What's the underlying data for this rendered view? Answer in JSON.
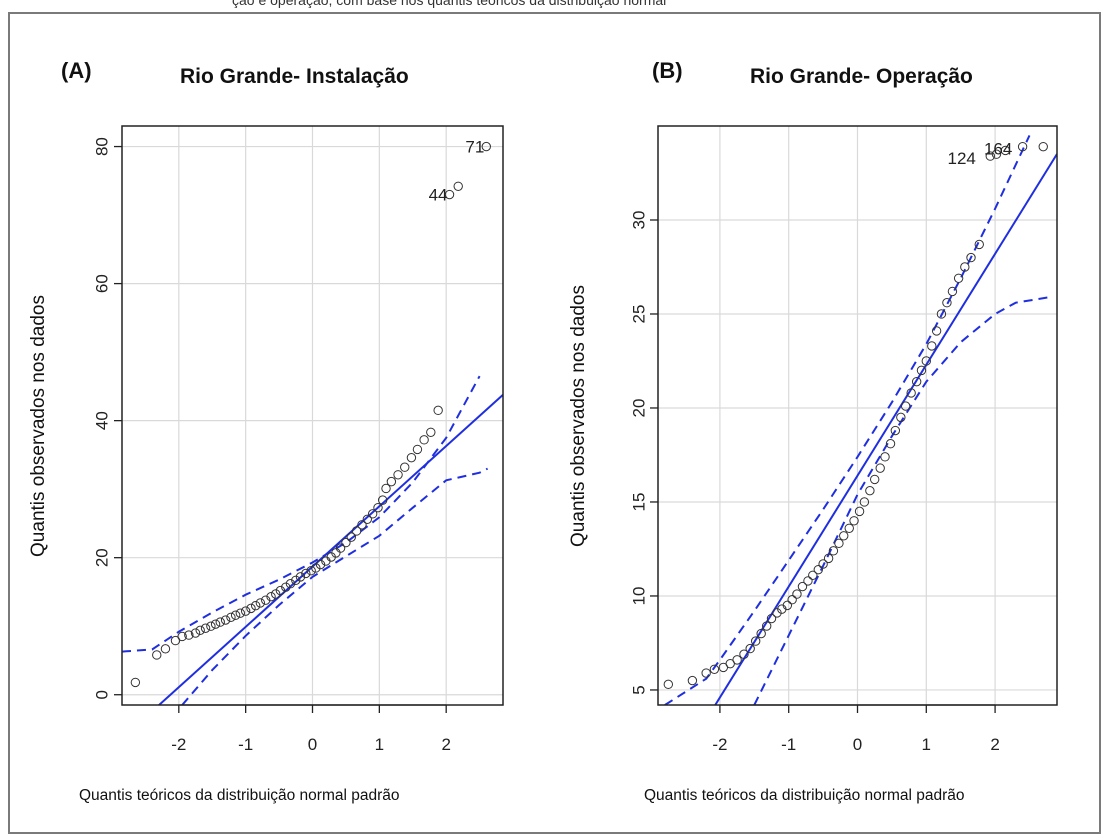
{
  "header_fragment": "ção e operação, com base nos quantis teóricos da distribuição normal",
  "chart_data": [
    {
      "type": "scatter",
      "panel_label": "(A)",
      "title": "Rio Grande- Instalação",
      "xlabel": "Quantis teóricos da distribuição normal padrão",
      "ylabel": "Quantis observados nos dados",
      "xlim": [
        -2.85,
        2.85
      ],
      "ylim": [
        -1.5,
        83
      ],
      "xticks": [
        -2,
        -1,
        0,
        1,
        2
      ],
      "yticks": [
        0,
        20,
        40,
        60,
        80
      ],
      "grid": true,
      "reference_line": {
        "intercept": 18.7,
        "slope": 8.8
      },
      "envelope_upper": [
        [
          -2.85,
          6.3
        ],
        [
          -2.4,
          6.6
        ],
        [
          -2.0,
          9.2
        ],
        [
          -1.5,
          12.0
        ],
        [
          -1.0,
          14.6
        ],
        [
          -0.5,
          16.8
        ],
        [
          0.0,
          19.3
        ],
        [
          0.5,
          22.2
        ],
        [
          1.0,
          25.9
        ],
        [
          1.5,
          31.0
        ],
        [
          2.0,
          37.5
        ],
        [
          2.5,
          46.5
        ]
      ],
      "envelope_lower": [
        [
          -1.95,
          -1.5
        ],
        [
          -1.5,
          3.6
        ],
        [
          -1.0,
          8.6
        ],
        [
          -0.5,
          13.1
        ],
        [
          0.0,
          17.2
        ],
        [
          0.5,
          20.2
        ],
        [
          1.0,
          23.2
        ],
        [
          1.5,
          27.3
        ],
        [
          2.0,
          31.3
        ],
        [
          2.5,
          32.4
        ],
        [
          2.62,
          33.0
        ]
      ],
      "points": [
        [
          -2.65,
          1.8
        ],
        [
          -2.33,
          5.8
        ],
        [
          -2.2,
          6.7
        ],
        [
          -2.05,
          7.9
        ],
        [
          -1.95,
          8.5
        ],
        [
          -1.85,
          8.7
        ],
        [
          -1.75,
          9.0
        ],
        [
          -1.68,
          9.4
        ],
        [
          -1.6,
          9.7
        ],
        [
          -1.52,
          10.0
        ],
        [
          -1.45,
          10.3
        ],
        [
          -1.38,
          10.6
        ],
        [
          -1.3,
          10.9
        ],
        [
          -1.22,
          11.3
        ],
        [
          -1.15,
          11.6
        ],
        [
          -1.08,
          11.9
        ],
        [
          -1.0,
          12.2
        ],
        [
          -0.92,
          12.6
        ],
        [
          -0.85,
          13.0
        ],
        [
          -0.78,
          13.4
        ],
        [
          -0.7,
          13.8
        ],
        [
          -0.62,
          14.3
        ],
        [
          -0.55,
          14.7
        ],
        [
          -0.48,
          15.2
        ],
        [
          -0.4,
          15.7
        ],
        [
          -0.33,
          16.2
        ],
        [
          -0.25,
          16.7
        ],
        [
          -0.18,
          17.2
        ],
        [
          -0.1,
          17.7
        ],
        [
          -0.02,
          18.1
        ],
        [
          0.05,
          18.5
        ],
        [
          0.12,
          19.0
        ],
        [
          0.2,
          19.5
        ],
        [
          0.28,
          20.1
        ],
        [
          0.35,
          20.7
        ],
        [
          0.42,
          21.4
        ],
        [
          0.5,
          22.2
        ],
        [
          0.58,
          23.0
        ],
        [
          0.66,
          23.9
        ],
        [
          0.74,
          24.8
        ],
        [
          0.82,
          25.6
        ],
        [
          0.9,
          26.4
        ],
        [
          0.98,
          27.3
        ],
        [
          1.05,
          28.4
        ],
        [
          1.1,
          30.1
        ],
        [
          1.18,
          31.1
        ],
        [
          1.28,
          32.1
        ],
        [
          1.38,
          33.2
        ],
        [
          1.48,
          34.6
        ],
        [
          1.57,
          35.8
        ],
        [
          1.67,
          37.2
        ],
        [
          1.77,
          38.3
        ],
        [
          1.88,
          41.5
        ],
        [
          2.05,
          73.0
        ],
        [
          2.18,
          74.2
        ],
        [
          2.6,
          80.0
        ]
      ],
      "point_labels": [
        {
          "label": "44",
          "x": 2.05,
          "y": 73.0
        },
        {
          "label": "71",
          "x": 2.6,
          "y": 80.0
        }
      ]
    },
    {
      "type": "scatter",
      "panel_label": "(B)",
      "title": "Rio Grande- Operação",
      "xlabel": "Quantis teóricos da distribuição normal padrão",
      "ylabel": "Quantis observados nos dados",
      "xlim": [
        -2.9,
        2.9
      ],
      "ylim": [
        4.2,
        35
      ],
      "xticks": [
        -2,
        -1,
        0,
        1,
        2
      ],
      "yticks": [
        5,
        10,
        15,
        20,
        25,
        30
      ],
      "grid": true,
      "reference_line": {
        "intercept": 16.4,
        "slope": 5.9
      },
      "envelope_upper": [
        [
          -2.8,
          4.2
        ],
        [
          -2.2,
          5.6
        ],
        [
          -2.0,
          6.6
        ],
        [
          -1.5,
          9.2
        ],
        [
          -1.0,
          11.9
        ],
        [
          -0.5,
          14.6
        ],
        [
          0.0,
          17.4
        ],
        [
          0.5,
          20.3
        ],
        [
          1.0,
          23.4
        ],
        [
          1.5,
          26.9
        ],
        [
          2.0,
          30.6
        ],
        [
          2.5,
          34.5
        ]
      ],
      "envelope_lower": [
        [
          -1.5,
          4.2
        ],
        [
          -1.0,
          7.9
        ],
        [
          -0.5,
          11.6
        ],
        [
          0.0,
          15.4
        ],
        [
          0.5,
          18.5
        ],
        [
          1.0,
          21.4
        ],
        [
          1.5,
          23.5
        ],
        [
          2.0,
          25.0
        ],
        [
          2.3,
          25.6
        ],
        [
          2.8,
          25.9
        ]
      ],
      "points": [
        [
          -2.75,
          5.3
        ],
        [
          -2.4,
          5.5
        ],
        [
          -2.2,
          5.9
        ],
        [
          -2.08,
          6.1
        ],
        [
          -1.95,
          6.2
        ],
        [
          -1.85,
          6.4
        ],
        [
          -1.75,
          6.6
        ],
        [
          -1.65,
          6.9
        ],
        [
          -1.56,
          7.2
        ],
        [
          -1.48,
          7.6
        ],
        [
          -1.4,
          8.0
        ],
        [
          -1.32,
          8.4
        ],
        [
          -1.25,
          8.8
        ],
        [
          -1.17,
          9.1
        ],
        [
          -1.1,
          9.3
        ],
        [
          -1.02,
          9.5
        ],
        [
          -0.95,
          9.8
        ],
        [
          -0.88,
          10.1
        ],
        [
          -0.8,
          10.5
        ],
        [
          -0.72,
          10.8
        ],
        [
          -0.65,
          11.1
        ],
        [
          -0.57,
          11.4
        ],
        [
          -0.5,
          11.7
        ],
        [
          -0.42,
          12.0
        ],
        [
          -0.35,
          12.4
        ],
        [
          -0.27,
          12.8
        ],
        [
          -0.2,
          13.2
        ],
        [
          -0.12,
          13.6
        ],
        [
          -0.05,
          14.0
        ],
        [
          0.03,
          14.5
        ],
        [
          0.1,
          15.0
        ],
        [
          0.18,
          15.6
        ],
        [
          0.25,
          16.2
        ],
        [
          0.33,
          16.8
        ],
        [
          0.4,
          17.4
        ],
        [
          0.48,
          18.1
        ],
        [
          0.55,
          18.8
        ],
        [
          0.63,
          19.5
        ],
        [
          0.7,
          20.1
        ],
        [
          0.78,
          20.8
        ],
        [
          0.86,
          21.4
        ],
        [
          0.93,
          22.0
        ],
        [
          1.0,
          22.5
        ],
        [
          1.08,
          23.3
        ],
        [
          1.15,
          24.1
        ],
        [
          1.22,
          25.0
        ],
        [
          1.3,
          25.6
        ],
        [
          1.38,
          26.2
        ],
        [
          1.47,
          26.9
        ],
        [
          1.56,
          27.5
        ],
        [
          1.65,
          28.0
        ],
        [
          1.77,
          28.7
        ],
        [
          1.93,
          33.4
        ],
        [
          2.02,
          33.5
        ],
        [
          2.15,
          33.7
        ],
        [
          2.4,
          33.9
        ],
        [
          2.7,
          33.9
        ]
      ],
      "point_labels": [
        {
          "label": "124",
          "x": 1.75,
          "y": 33.3
        },
        {
          "label": "164",
          "x": 2.28,
          "y": 33.8
        }
      ]
    }
  ]
}
